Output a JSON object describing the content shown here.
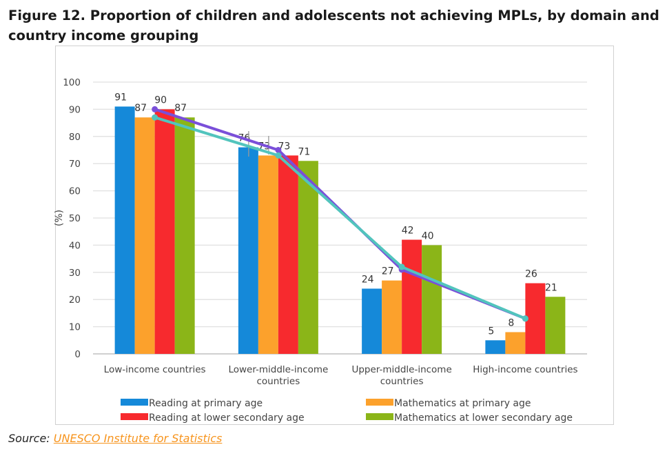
{
  "title": "Figure 12. Proportion of children and adolescents not achieving MPLs, by domain and country income grouping",
  "source": {
    "label": "Source:",
    "link_text": "UNESCO Institute for Statistics"
  },
  "chart_data": {
    "type": "bar",
    "title": "",
    "ylabel": "(%)",
    "xlabel": "",
    "ylim": [
      0,
      100
    ],
    "yticks": [
      0,
      10,
      20,
      30,
      40,
      50,
      60,
      70,
      80,
      90,
      100
    ],
    "grid": true,
    "legend_placement": "bottom",
    "categories": [
      "Low-income countries",
      "Lower-middle-income countries",
      "Upper-middle-income countries",
      "High-income countries"
    ],
    "series": [
      {
        "name": "Reading at primary age",
        "color": "#1589d9",
        "values": [
          91,
          76,
          24,
          5
        ]
      },
      {
        "name": "Mathematics at primary age",
        "color": "#fca12c",
        "values": [
          87,
          73,
          27,
          8
        ]
      },
      {
        "name": "Reading at lower secondary age",
        "color": "#f72a2e",
        "values": [
          90,
          73,
          42,
          26
        ]
      },
      {
        "name": "Mathematics at lower secondary age",
        "color": "#8bb518",
        "values": [
          87,
          71,
          40,
          21
        ]
      }
    ],
    "lines": [
      {
        "color": "#7a4fd9",
        "values": [
          90,
          75,
          31,
          13
        ]
      },
      {
        "color": "#52c4bd",
        "values": [
          87,
          73,
          32,
          13
        ]
      }
    ]
  }
}
